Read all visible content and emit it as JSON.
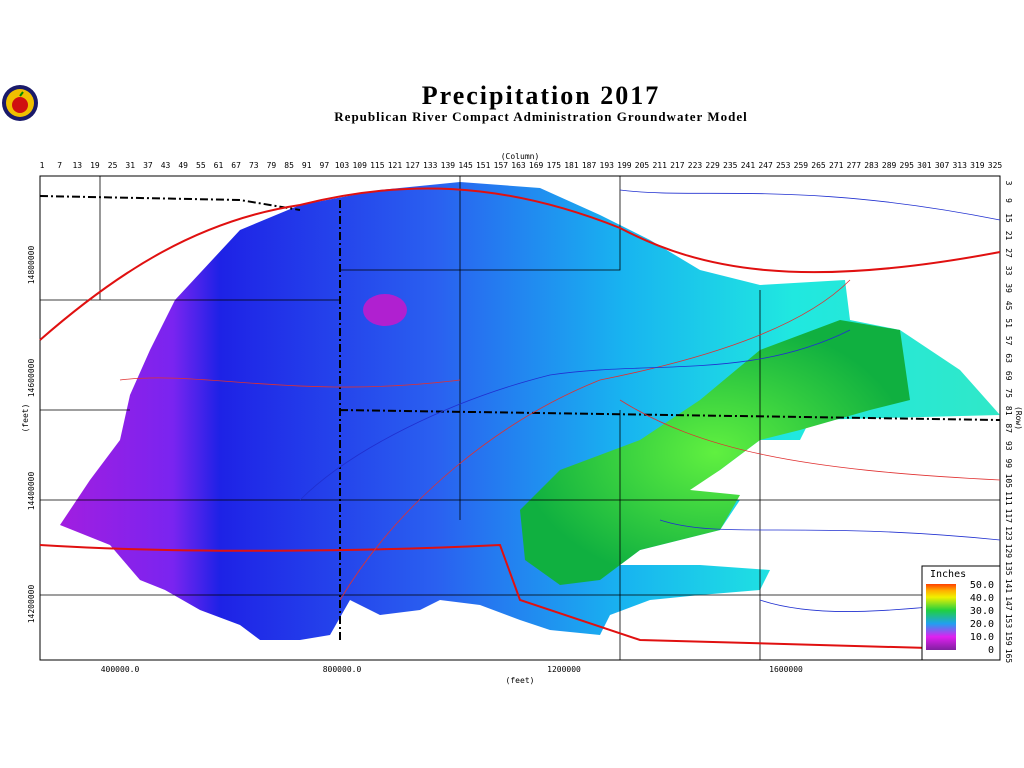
{
  "header": {
    "title": "Precipitation 2017",
    "subtitle": "Republican River Compact Administration Groundwater Model"
  },
  "axes": {
    "column_label": "(Column)",
    "columns": [
      1,
      7,
      13,
      19,
      25,
      31,
      37,
      43,
      49,
      55,
      61,
      67,
      73,
      79,
      85,
      91,
      97,
      103,
      109,
      115,
      121,
      127,
      133,
      139,
      145,
      151,
      157,
      163,
      169,
      175,
      181,
      187,
      193,
      199,
      205,
      211,
      217,
      223,
      229,
      235,
      241,
      247,
      253,
      259,
      265,
      271,
      277,
      283,
      289,
      295,
      301,
      307,
      313,
      319,
      325
    ],
    "row_label": "(Row)",
    "rows": [
      3,
      9,
      15,
      21,
      27,
      33,
      39,
      45,
      51,
      57,
      63,
      69,
      75,
      81,
      87,
      93,
      99,
      105,
      111,
      117,
      123,
      129,
      135,
      141,
      147,
      153,
      159,
      165
    ],
    "y_label": "(feet)",
    "y_ticks": [
      14800000,
      14600000,
      14400000,
      14200000
    ],
    "x_label": "(feet)",
    "x_ticks": [
      {
        "value": 400000,
        "label": "400000.0"
      },
      {
        "value": 800000,
        "label": "800000.0"
      },
      1200000,
      1600000
    ]
  },
  "legend": {
    "title": "Inches",
    "labels": [
      {
        "value": 50,
        "label": "50.0"
      },
      {
        "value": 40,
        "label": "40.0"
      },
      {
        "value": 30,
        "label": "30.0"
      },
      {
        "value": 20,
        "label": "20.0"
      },
      {
        "value": 10,
        "label": "10.0"
      },
      0
    ]
  }
}
